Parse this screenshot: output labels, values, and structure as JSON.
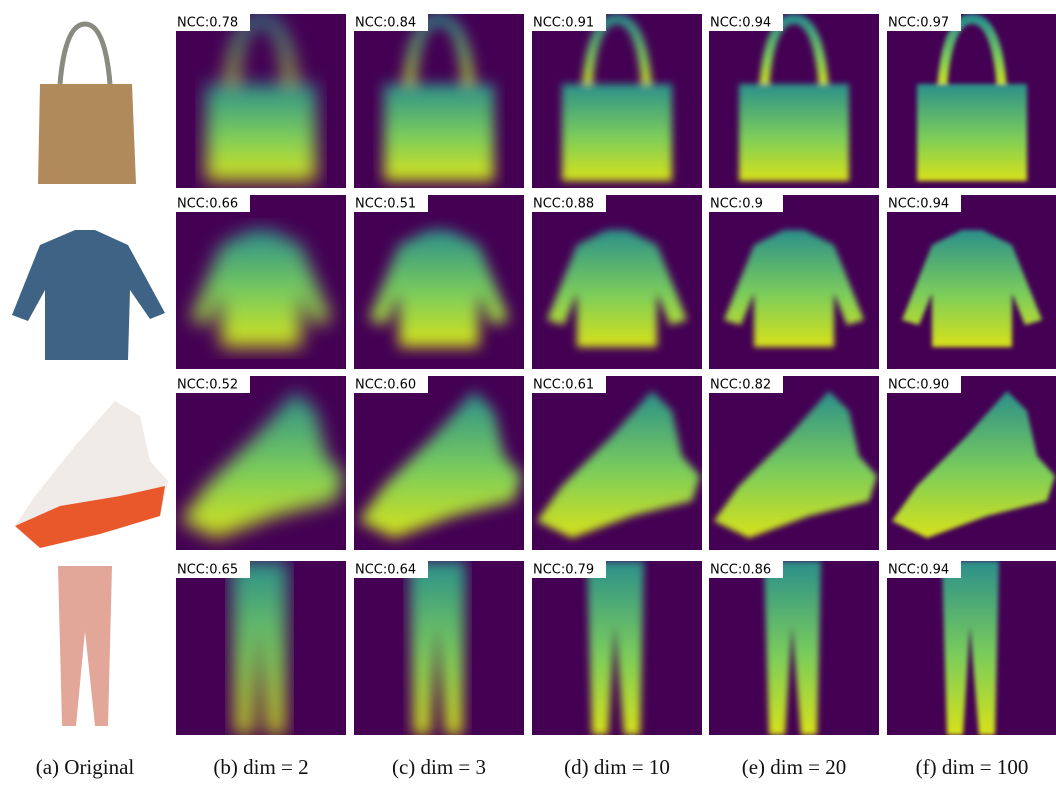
{
  "columns": [
    "(a) Original",
    "(b) dim = 2",
    "(c) dim = 3",
    "(d) dim = 10",
    "(e) dim = 20",
    "(f) dim = 100"
  ],
  "rows": [
    {
      "ncc": [
        "NCC:0.78",
        "NCC:0.84",
        "NCC:0.91",
        "NCC:0.94",
        "NCC:0.97"
      ]
    },
    {
      "ncc": [
        "NCC:0.66",
        "NCC:0.51",
        "NCC:0.88",
        "NCC:0.9",
        "NCC:0.94"
      ]
    },
    {
      "ncc": [
        "NCC:0.52",
        "NCC:0.60",
        "NCC:0.61",
        "NCC:0.82",
        "NCC:0.90"
      ]
    },
    {
      "ncc": [
        "NCC:0.65",
        "NCC:0.64",
        "NCC:0.79",
        "NCC:0.86",
        "NCC:0.94"
      ]
    }
  ]
}
